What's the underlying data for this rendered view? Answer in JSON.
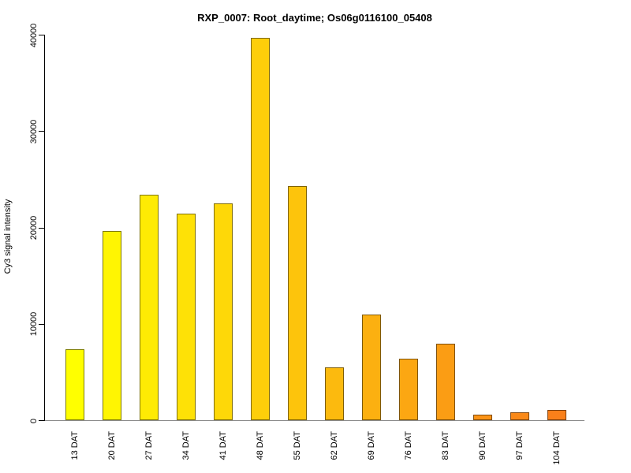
{
  "title": "RXP_0007: Root_daytime; Os06g0116100_05408",
  "y_axis": {
    "label": "Cy3 signal intensity"
  },
  "chart_data": {
    "type": "bar",
    "title": "RXP_0007: Root_daytime; Os06g0116100_05408",
    "xlabel": "",
    "ylabel": "Cy3 signal intensity",
    "categories": [
      "13 DAT",
      "20 DAT",
      "27 DAT",
      "34 DAT",
      "41 DAT",
      "48 DAT",
      "55 DAT",
      "62 DAT",
      "69 DAT",
      "76 DAT",
      "83 DAT",
      "90 DAT",
      "97 DAT",
      "104 DAT"
    ],
    "values": [
      7400,
      19600,
      23400,
      21400,
      22500,
      39700,
      24300,
      5500,
      11000,
      6400,
      7900,
      550,
      800,
      1050
    ],
    "bar_colors": [
      "#FFFF00",
      "#FFF502",
      "#FEEB04",
      "#FEE106",
      "#FED808",
      "#FDCE0A",
      "#FDC40C",
      "#FCBA0E",
      "#FCB010",
      "#FCA712",
      "#FB9D14",
      "#FB9316",
      "#FA8918",
      "#FA801A"
    ],
    "bar_border_color": "rgba(0,0,0,0.5)",
    "ylim": [
      0,
      40000
    ],
    "yticks": [
      0,
      10000,
      20000,
      30000,
      40000
    ],
    "ytick_labels": [
      "0",
      "10000",
      "20000",
      "30000",
      "40000"
    ],
    "grid": false,
    "legend_position": "none",
    "axis_color": "#000000",
    "baseline_color": "#8a8a8a",
    "background_color": "#ffffff"
  }
}
